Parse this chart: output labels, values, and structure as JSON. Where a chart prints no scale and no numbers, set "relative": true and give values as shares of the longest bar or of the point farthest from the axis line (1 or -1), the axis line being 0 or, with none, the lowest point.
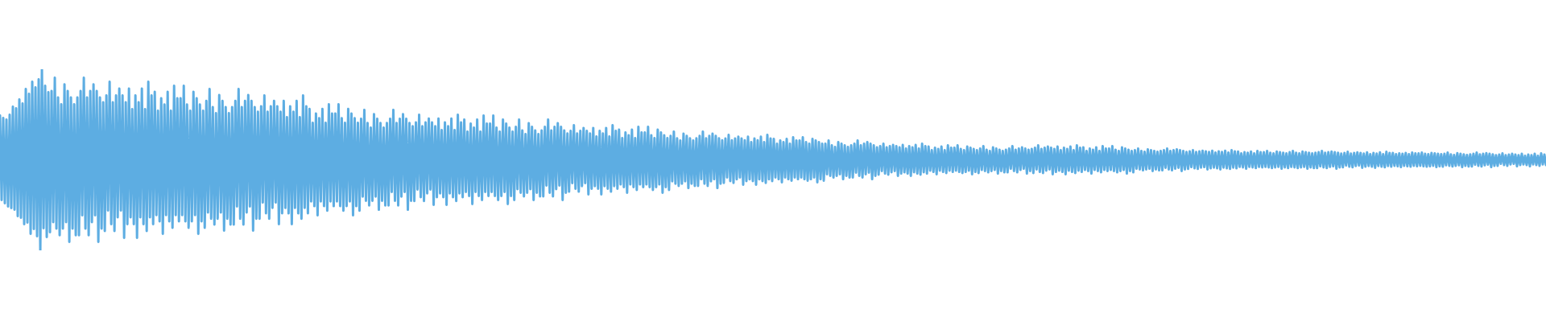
{
  "chart_data": {
    "type": "line",
    "relative": true,
    "line_style": "solid",
    "grid": false,
    "categories": [
      null,
      null,
      null,
      null,
      null,
      null,
      null,
      null,
      null,
      null,
      null,
      null,
      null,
      null,
      null,
      null,
      null,
      null,
      null,
      null,
      null,
      null,
      null,
      null,
      null,
      null,
      null,
      null,
      null,
      null,
      null,
      null,
      null,
      null,
      null,
      null,
      null,
      null,
      null,
      null,
      null,
      null,
      null,
      null,
      null,
      null,
      null,
      null,
      null,
      null,
      null,
      null,
      null,
      null,
      null,
      null,
      null,
      null,
      null,
      null,
      null,
      null,
      null,
      null,
      null,
      null,
      null,
      null,
      null,
      null,
      null,
      null,
      null,
      null,
      null,
      null,
      null,
      null,
      null,
      null,
      null,
      null,
      null,
      null,
      null,
      null,
      null,
      null,
      null,
      null,
      null,
      null,
      null,
      null,
      null,
      null,
      null,
      null,
      null,
      null,
      null,
      null,
      null,
      null,
      null,
      null,
      null,
      null,
      null,
      null,
      null,
      null,
      null,
      null,
      null,
      null,
      null,
      null,
      null,
      null,
      null,
      null,
      null,
      null,
      null,
      null,
      null,
      null,
      null,
      null,
      null,
      null,
      null,
      null,
      null,
      null,
      null,
      null,
      null,
      null,
      null,
      null,
      null,
      null,
      null,
      null,
      null,
      null,
      null,
      null,
      null,
      null,
      null,
      null,
      null,
      null,
      null,
      null,
      null,
      null,
      null,
      null,
      null,
      null,
      null,
      null,
      null,
      null,
      null,
      null,
      null,
      null,
      null,
      null,
      null,
      null,
      null,
      null,
      null,
      null,
      null,
      null,
      null,
      null,
      null,
      null,
      null,
      null,
      null,
      null,
      null,
      null,
      null,
      null,
      null,
      null,
      null,
      null,
      null,
      null,
      null,
      null,
      null,
      null,
      null,
      null,
      null,
      null,
      null,
      null,
      null,
      null,
      null,
      null,
      null,
      null,
      null,
      null,
      null,
      null,
      null,
      null,
      null,
      null,
      null,
      null,
      null,
      null,
      null,
      null,
      null,
      null,
      null,
      null,
      null,
      null,
      null,
      null,
      null,
      null,
      null,
      null,
      null,
      null,
      null,
      null,
      null,
      null,
      null,
      null,
      null,
      null,
      null,
      null,
      null,
      null,
      null,
      null,
      null,
      null,
      null,
      null,
      null,
      null,
      null,
      null,
      null,
      null,
      null,
      null,
      null,
      null,
      null,
      null,
      null,
      null,
      null,
      null,
      null,
      null,
      null,
      null,
      null,
      null,
      null,
      null,
      null,
      null,
      null,
      null,
      null,
      null,
      null,
      null,
      null,
      null,
      null,
      null,
      null,
      null,
      null,
      null,
      null,
      null,
      null,
      null,
      null,
      null,
      null,
      null,
      null,
      null,
      null,
      null,
      null,
      null,
      null,
      null,
      null,
      null,
      null,
      null,
      null,
      null,
      null,
      null,
      null,
      null,
      null,
      null,
      null,
      null,
      null,
      null,
      null,
      null,
      null,
      null,
      null,
      null,
      null,
      null,
      null,
      null,
      null,
      null,
      null,
      null,
      null,
      null,
      null,
      null,
      null,
      null,
      null,
      null,
      null,
      null,
      null,
      null,
      null,
      null,
      null,
      null,
      null,
      null,
      null,
      null,
      null,
      null,
      null,
      null,
      null,
      null,
      null,
      null,
      null,
      null,
      null,
      null,
      null,
      null,
      null,
      null,
      null,
      null,
      null,
      null,
      null,
      null,
      null,
      null,
      null,
      null,
      null,
      null,
      null,
      null,
      null,
      null,
      null,
      null,
      null,
      null,
      null,
      null,
      null,
      null,
      null,
      null,
      null,
      null,
      null,
      null,
      null,
      null,
      null,
      null,
      null,
      null,
      null,
      null,
      null,
      null,
      null,
      null,
      null,
      null,
      null,
      null,
      null,
      null,
      null,
      null,
      null,
      null,
      null,
      null,
      null,
      null,
      null,
      null,
      null,
      null,
      null,
      null,
      null,
      null,
      null,
      null,
      null,
      null,
      null,
      null,
      null,
      null,
      null,
      null,
      null,
      null,
      null,
      null,
      null,
      null,
      null,
      null,
      null,
      null,
      null,
      null,
      null,
      null,
      null,
      null,
      null,
      null,
      null,
      null,
      null,
      null,
      null,
      null,
      null,
      null,
      null,
      null,
      null,
      null,
      null,
      null,
      null,
      null,
      null,
      null,
      null,
      null,
      null,
      null,
      null,
      null,
      null,
      null,
      null,
      null,
      null,
      null,
      null,
      null,
      null,
      null,
      null,
      null,
      null,
      null,
      null,
      null,
      null,
      null,
      null,
      null,
      null,
      null,
      null,
      null,
      null,
      null,
      null,
      null,
      null,
      null,
      null,
      null,
      null,
      null,
      null,
      null,
      null,
      null,
      null,
      null,
      null,
      null,
      null,
      null,
      null,
      null,
      null,
      null,
      null,
      null,
      null,
      null,
      null,
      null,
      null,
      null,
      null,
      null,
      null,
      null,
      null,
      null,
      null,
      null,
      null,
      null,
      null,
      null,
      null,
      null,
      null,
      null,
      null,
      null,
      null,
      null,
      null,
      null,
      null,
      null,
      null,
      null,
      null,
      null,
      null,
      null,
      null,
      null,
      null,
      null,
      null,
      null,
      null,
      null,
      null,
      null,
      null,
      null,
      null,
      null,
      null,
      null,
      null,
      null,
      null,
      null,
      null,
      null,
      null,
      null,
      null,
      null,
      null,
      null,
      null,
      null,
      null,
      null,
      null,
      null,
      null,
      null,
      null,
      null,
      null,
      null,
      null,
      null,
      null,
      null,
      null,
      null,
      null,
      null,
      null,
      null,
      null,
      null,
      null,
      null,
      null,
      null,
      null,
      null,
      null,
      null,
      null,
      null,
      null,
      null,
      null,
      null,
      null,
      null,
      null,
      null,
      null,
      null,
      null,
      null,
      null,
      null,
      null,
      null,
      null,
      null,
      null,
      null,
      null,
      null,
      null,
      null,
      null,
      null,
      null,
      null,
      null,
      null,
      null,
      null,
      null,
      null,
      null,
      null,
      null,
      null,
      null,
      null,
      null,
      null,
      null,
      null,
      null,
      null,
      null,
      null,
      null,
      null,
      null,
      null,
      null,
      null,
      null,
      null,
      null,
      null,
      null,
      null,
      null,
      null,
      null,
      null,
      null,
      null,
      null,
      null,
      null,
      null,
      null,
      null,
      null,
      null,
      null,
      null,
      null,
      null,
      null,
      null,
      null,
      null,
      null,
      null,
      null,
      null,
      null,
      null,
      null,
      null,
      null,
      null,
      null,
      null,
      null,
      null,
      null,
      null,
      null,
      null,
      null,
      null,
      null,
      null,
      null,
      null,
      null,
      null,
      null,
      null,
      null,
      null,
      null,
      null,
      null,
      null,
      null,
      null,
      null,
      null,
      null,
      null,
      null,
      null,
      null,
      null,
      null,
      null,
      null,
      null,
      null,
      null,
      null,
      null,
      null,
      null,
      null,
      null,
      null,
      null,
      null,
      null,
      null,
      null,
      null,
      null,
      null,
      null,
      null,
      null,
      null,
      null,
      null,
      null,
      null,
      null,
      null,
      null,
      null,
      null,
      null,
      null,
      null,
      null,
      null,
      null,
      null,
      null,
      null,
      null,
      null,
      null,
      null,
      null,
      null,
      null,
      null,
      null,
      null,
      null,
      null,
      null,
      null,
      null,
      null,
      null,
      null,
      null,
      null,
      null,
      null,
      null,
      null,
      null,
      null,
      null,
      null,
      null,
      null,
      null,
      null,
      null,
      null,
      null,
      null,
      null,
      null,
      null,
      null,
      null,
      null,
      null,
      null,
      null,
      null,
      null,
      null,
      null,
      null,
      null,
      null,
      null,
      null,
      null,
      null,
      null,
      null,
      null,
      null,
      null,
      null,
      null,
      null,
      null,
      null,
      null,
      null,
      null,
      null,
      null,
      null,
      null,
      null,
      null,
      null,
      null,
      null,
      null,
      null,
      null,
      null,
      null,
      null,
      null,
      null,
      null,
      null,
      null,
      null,
      null,
      null,
      null,
      null,
      null,
      null,
      null,
      null,
      null,
      null,
      null,
      null,
      null,
      null,
      null,
      null,
      null,
      null,
      null,
      null,
      null,
      null,
      null,
      null,
      null,
      null,
      null,
      null,
      null,
      null,
      null,
      null,
      null,
      null,
      null,
      null,
      null,
      null,
      null,
      null,
      null,
      null,
      null,
      null,
      null,
      null,
      null,
      null,
      null,
      null,
      null,
      null,
      null
    ],
    "series": [
      {
        "color": "#5dade2",
        "values": [
          0.744,
          0.278,
          0.731,
          0.26,
          0.722,
          0.242,
          0.749,
          0.233,
          0.793,
          0.224,
          0.784,
          0.189,
          0.833,
          0.18,
          0.811,
          0.144,
          0.891,
          0.153,
          0.864,
          0.091,
          0.931,
          0.118,
          0.9,
          0.078,
          0.944,
          0,
          1,
          0.122,
          0.909,
          0.073,
          0.873,
          0.1,
          0.88,
          0.156,
          0.953,
          0.12,
          0.844,
          0.083,
          0.807,
          0.12,
          0.917,
          0.156,
          0.88,
          0.047,
          0.844,
          0.12,
          0.807,
          0.083,
          0.844,
          0.083,
          0.88,
          0.193,
          0.953,
          0.12,
          0.844,
          0.083,
          0.88,
          0.156,
          0.917,
          0.193,
          0.88,
          0.047,
          0.844,
          0.12,
          0.818,
          0.107,
          0.856,
          0.22,
          0.931,
          0.144,
          0.818,
          0.107,
          0.856,
          0.182,
          0.893,
          0.22,
          0.856,
          0.069,
          0.818,
          0.144,
          0.893,
          0.182,
          0.78,
          0.144,
          0.856,
          0.069,
          0.818,
          0.182,
          0.893,
          0.144,
          0.78,
          0.107,
          0.931,
          0.182,
          0.856,
          0.144,
          0.875,
          0.194,
          0.771,
          0.16,
          0.84,
          0.091,
          0.806,
          0.194,
          0.875,
          0.16,
          0.771,
          0.125,
          0.909,
          0.194,
          0.84,
          0.16,
          0.84,
          0.194,
          0.909,
          0.16,
          0.806,
          0.125,
          0.771,
          0.16,
          0.875,
          0.194,
          0.84,
          0.091,
          0.806,
          0.16,
          0.771,
          0.125,
          0.825,
          0.209,
          0.891,
          0.175,
          0.791,
          0.142,
          0.758,
          0.175,
          0.858,
          0.209,
          0.825,
          0.109,
          0.791,
          0.175,
          0.758,
          0.142,
          0.791,
          0.142,
          0.825,
          0.242,
          0.891,
          0.175,
          0.791,
          0.142,
          0.825,
          0.209,
          0.858,
          0.242,
          0.825,
          0.109,
          0.791,
          0.175,
          0.766,
          0.174,
          0.796,
          0.264,
          0.856,
          0.204,
          0.766,
          0.174,
          0.796,
          0.234,
          0.826,
          0.264,
          0.796,
          0.144,
          0.766,
          0.204,
          0.826,
          0.234,
          0.736,
          0.204,
          0.796,
          0.144,
          0.766,
          0.234,
          0.826,
          0.204,
          0.736,
          0.174,
          0.856,
          0.234,
          0.796,
          0.204,
          0.781,
          0.27,
          0.704,
          0.244,
          0.756,
          0.193,
          0.73,
          0.27,
          0.781,
          0.244,
          0.704,
          0.219,
          0.807,
          0.27,
          0.756,
          0.244,
          0.756,
          0.27,
          0.807,
          0.244,
          0.73,
          0.219,
          0.704,
          0.244,
          0.781,
          0.27,
          0.756,
          0.193,
          0.73,
          0.244,
          0.704,
          0.219,
          0.727,
          0.297,
          0.776,
          0.273,
          0.703,
          0.248,
          0.678,
          0.273,
          0.752,
          0.297,
          0.727,
          0.224,
          0.703,
          0.273,
          0.678,
          0.248,
          0.703,
          0.248,
          0.727,
          0.322,
          0.776,
          0.273,
          0.703,
          0.248,
          0.727,
          0.297,
          0.752,
          0.322,
          0.727,
          0.224,
          0.703,
          0.273,
          0.685,
          0.272,
          0.707,
          0.336,
          0.749,
          0.293,
          0.685,
          0.272,
          0.707,
          0.315,
          0.728,
          0.336,
          0.707,
          0.251,
          0.685,
          0.293,
          0.728,
          0.315,
          0.664,
          0.293,
          0.707,
          0.251,
          0.685,
          0.315,
          0.728,
          0.293,
          0.664,
          0.272,
          0.749,
          0.315,
          0.707,
          0.293,
          0.722,
          0.322,
          0.656,
          0.3,
          0.7,
          0.256,
          0.678,
          0.322,
          0.722,
          0.3,
          0.656,
          0.278,
          0.744,
          0.322,
          0.7,
          0.3,
          0.7,
          0.322,
          0.744,
          0.3,
          0.678,
          0.278,
          0.656,
          0.3,
          0.722,
          0.322,
          0.7,
          0.256,
          0.678,
          0.3,
          0.656,
          0.278,
          0.682,
          0.338,
          0.722,
          0.318,
          0.662,
          0.298,
          0.642,
          0.318,
          0.702,
          0.338,
          0.682,
          0.278,
          0.662,
          0.318,
          0.642,
          0.298,
          0.662,
          0.298,
          0.682,
          0.358,
          0.722,
          0.318,
          0.662,
          0.298,
          0.682,
          0.338,
          0.702,
          0.358,
          0.682,
          0.278,
          0.662,
          0.318,
          0.645,
          0.324,
          0.66,
          0.371,
          0.691,
          0.34,
          0.645,
          0.324,
          0.66,
          0.355,
          0.676,
          0.371,
          0.66,
          0.309,
          0.645,
          0.34,
          0.676,
          0.355,
          0.629,
          0.34,
          0.66,
          0.309,
          0.645,
          0.355,
          0.676,
          0.34,
          0.629,
          0.324,
          0.691,
          0.355,
          0.66,
          0.34,
          0.667,
          0.364,
          0.62,
          0.349,
          0.651,
          0.318,
          0.636,
          0.364,
          0.667,
          0.349,
          0.62,
          0.333,
          0.682,
          0.364,
          0.651,
          0.349,
          0.651,
          0.364,
          0.682,
          0.349,
          0.636,
          0.333,
          0.62,
          0.349,
          0.667,
          0.364,
          0.651,
          0.318,
          0.636,
          0.349,
          0.62,
          0.333,
          0.632,
          0.381,
          0.656,
          0.368,
          0.619,
          0.356,
          0.607,
          0.368,
          0.644,
          0.381,
          0.632,
          0.344,
          0.619,
          0.368,
          0.607,
          0.356,
          0.619,
          0.356,
          0.632,
          0.393,
          0.656,
          0.368,
          0.619,
          0.356,
          0.632,
          0.381,
          0.644,
          0.393,
          0.632,
          0.344,
          0.619,
          0.368,
          0.608,
          0.372,
          0.618,
          0.402,
          0.638,
          0.382,
          0.608,
          0.372,
          0.618,
          0.392,
          0.628,
          0.402,
          0.618,
          0.362,
          0.608,
          0.382,
          0.628,
          0.392,
          0.598,
          0.382,
          0.618,
          0.362,
          0.608,
          0.392,
          0.628,
          0.382,
          0.598,
          0.372,
          0.638,
          0.392,
          0.618,
          0.382,
          0.615,
          0.402,
          0.589,
          0.393,
          0.607,
          0.376,
          0.598,
          0.402,
          0.615,
          0.393,
          0.589,
          0.385,
          0.624,
          0.402,
          0.607,
          0.393,
          0.607,
          0.402,
          0.624,
          0.393,
          0.598,
          0.385,
          0.589,
          0.393,
          0.615,
          0.402,
          0.607,
          0.376,
          0.598,
          0.393,
          0.589,
          0.385,
          0.589,
          0.42,
          0.607,
          0.411,
          0.58,
          0.402,
          0.571,
          0.411,
          0.598,
          0.42,
          0.589,
          0.393,
          0.58,
          0.411,
          0.571,
          0.402,
          0.58,
          0.402,
          0.589,
          0.429,
          0.607,
          0.411,
          0.58,
          0.402,
          0.589,
          0.42,
          0.598,
          0.429,
          0.589,
          0.393,
          0.58,
          0.411,
          0.569,
          0.418,
          0.576,
          0.438,
          0.589,
          0.424,
          0.569,
          0.418,
          0.576,
          0.431,
          0.582,
          0.438,
          0.576,
          0.411,
          0.569,
          0.424,
          0.582,
          0.431,
          0.562,
          0.424,
          0.576,
          0.411,
          0.569,
          0.431,
          0.582,
          0.424,
          0.562,
          0.418,
          0.589,
          0.431,
          0.576,
          0.424,
          0.573,
          0.44,
          0.553,
          0.433,
          0.567,
          0.42,
          0.56,
          0.44,
          0.573,
          0.433,
          0.553,
          0.427,
          0.58,
          0.44,
          0.567,
          0.433,
          0.567,
          0.44,
          0.58,
          0.433,
          0.56,
          0.427,
          0.553,
          0.433,
          0.573,
          0.44,
          0.567,
          0.42,
          0.56,
          0.433,
          0.553,
          0.427,
          0.562,
          0.444,
          0.576,
          0.438,
          0.556,
          0.431,
          0.549,
          0.438,
          0.569,
          0.444,
          0.562,
          0.424,
          0.556,
          0.438,
          0.549,
          0.431,
          0.556,
          0.431,
          0.562,
          0.451,
          0.576,
          0.438,
          0.556,
          0.431,
          0.562,
          0.444,
          0.569,
          0.451,
          0.562,
          0.424,
          0.556,
          0.438,
          0.56,
          0.427,
          0.567,
          0.447,
          0.58,
          0.433,
          0.56,
          0.427,
          0.567,
          0.44,
          0.573,
          0.447,
          0.567,
          0.42,
          0.56,
          0.433,
          0.573,
          0.44,
          0.553,
          0.433,
          0.567,
          0.42,
          0.56,
          0.44,
          0.573,
          0.433,
          0.553,
          0.427,
          0.58,
          0.44,
          0.567,
          0.433,
          0.569,
          0.444,
          0.549,
          0.438,
          0.562,
          0.424,
          0.556,
          0.444,
          0.569,
          0.438,
          0.549,
          0.431,
          0.576,
          0.444,
          0.562,
          0.438,
          0.562,
          0.444,
          0.576,
          0.438,
          0.556,
          0.431,
          0.549,
          0.438,
          0.569,
          0.444,
          0.562,
          0.424,
          0.556,
          0.438,
          0.549,
          0.431,
          0.553,
          0.451,
          0.562,
          0.447,
          0.549,
          0.442,
          0.544,
          0.447,
          0.558,
          0.451,
          0.553,
          0.438,
          0.549,
          0.447,
          0.544,
          0.442,
          0.549,
          0.442,
          0.553,
          0.456,
          0.562,
          0.447,
          0.549,
          0.442,
          0.553,
          0.451,
          0.558,
          0.456,
          0.553,
          0.438,
          0.549,
          0.447,
          0.543,
          0.45,
          0.547,
          0.46,
          0.553,
          0.453,
          0.543,
          0.45,
          0.547,
          0.457,
          0.55,
          0.46,
          0.547,
          0.447,
          0.543,
          0.453,
          0.55,
          0.457,
          0.54,
          0.453,
          0.547,
          0.447,
          0.543,
          0.457,
          0.55,
          0.453,
          0.54,
          0.45,
          0.553,
          0.457,
          0.547,
          0.453,
          0.546,
          0.461,
          0.536,
          0.458,
          0.542,
          0.451,
          0.539,
          0.461,
          0.546,
          0.458,
          0.536,
          0.454,
          0.549,
          0.461,
          0.542,
          0.458,
          0.542,
          0.461,
          0.549,
          0.458,
          0.539,
          0.454,
          0.536,
          0.458,
          0.546,
          0.461,
          0.542,
          0.451,
          0.539,
          0.458,
          0.536,
          0.454,
          0.542,
          0.461,
          0.549,
          0.458,
          0.539,
          0.454,
          0.536,
          0.458,
          0.546,
          0.461,
          0.542,
          0.451,
          0.539,
          0.458,
          0.536,
          0.454,
          0.539,
          0.454,
          0.542,
          0.464,
          0.549,
          0.458,
          0.539,
          0.454,
          0.542,
          0.461,
          0.546,
          0.464,
          0.542,
          0.451,
          0.539,
          0.458,
          0.534,
          0.459,
          0.538,
          0.469,
          0.544,
          0.462,
          0.534,
          0.459,
          0.538,
          0.466,
          0.541,
          0.469,
          0.538,
          0.456,
          0.534,
          0.462,
          0.541,
          0.466,
          0.531,
          0.462,
          0.538,
          0.456,
          0.534,
          0.466,
          0.541,
          0.462,
          0.531,
          0.459,
          0.544,
          0.466,
          0.538,
          0.462,
          0.538,
          0.467,
          0.531,
          0.464,
          0.536,
          0.46,
          0.533,
          0.467,
          0.538,
          0.464,
          0.531,
          0.462,
          0.54,
          0.467,
          0.536,
          0.464,
          0.536,
          0.467,
          0.54,
          0.464,
          0.533,
          0.462,
          0.531,
          0.464,
          0.538,
          0.467,
          0.536,
          0.46,
          0.533,
          0.464,
          0.531,
          0.462,
          0.533,
          0.47,
          0.54,
          0.467,
          0.53,
          0.463,
          0.527,
          0.467,
          0.537,
          0.47,
          0.533,
          0.46,
          0.53,
          0.467,
          0.527,
          0.463,
          0.53,
          0.463,
          0.533,
          0.473,
          0.54,
          0.467,
          0.53,
          0.463,
          0.533,
          0.47,
          0.537,
          0.473,
          0.533,
          0.46,
          0.53,
          0.467,
          0.526,
          0.467,
          0.529,
          0.478,
          0.536,
          0.471,
          0.526,
          0.467,
          0.529,
          0.474,
          0.533,
          0.478,
          0.529,
          0.464,
          0.526,
          0.471,
          0.533,
          0.474,
          0.522,
          0.471,
          0.529,
          0.464,
          0.526,
          0.474,
          0.533,
          0.471,
          0.522,
          0.467,
          0.536,
          0.474,
          0.529,
          0.471
        ]
      }
    ]
  }
}
